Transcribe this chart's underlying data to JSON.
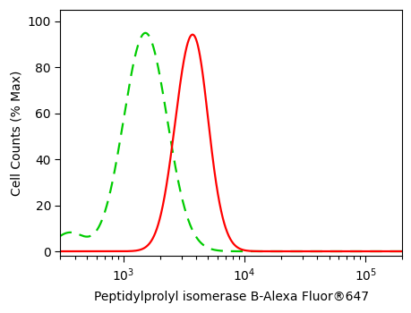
{
  "xlabel": "Peptidylprolyl isomerase B-Alexa Fluor®647",
  "ylabel": "Cell Counts (% Max)",
  "xlim": [
    300,
    200000
  ],
  "ylim": [
    -2,
    105
  ],
  "yticks": [
    0,
    20,
    40,
    60,
    80,
    100
  ],
  "background_color": "#ffffff",
  "red_line": {
    "color": "#ff0000",
    "lw": 1.6,
    "peak_log": 3.56,
    "sigma": 0.135,
    "peak_height": 92,
    "skew": -0.5
  },
  "green_line": {
    "color": "#00cc00",
    "lw": 1.6,
    "linestyle": "--",
    "peak_log": 3.18,
    "sigma": 0.18,
    "peak_height": 95,
    "baseline_height": 8,
    "baseline_log": 2.55,
    "baseline_sigma": 0.12
  }
}
